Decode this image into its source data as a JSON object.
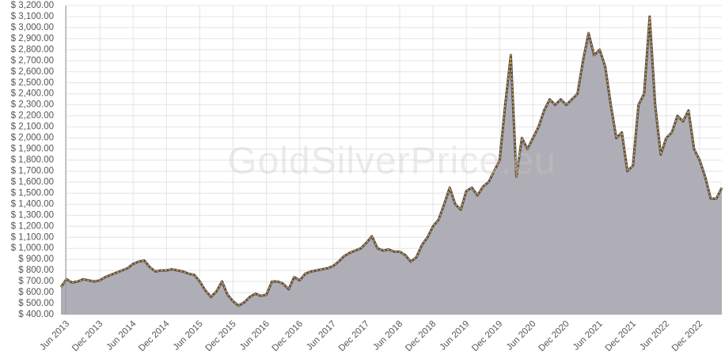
{
  "chart_data": {
    "type": "area",
    "watermark": "GoldSilverPrice.eu",
    "x": [
      "2013-05",
      "2013-06",
      "2013-07",
      "2013-08",
      "2013-09",
      "2013-10",
      "2013-11",
      "2013-12",
      "2014-01",
      "2014-02",
      "2014-03",
      "2014-04",
      "2014-05",
      "2014-06",
      "2014-07",
      "2014-08",
      "2014-09",
      "2014-10",
      "2014-11",
      "2014-12",
      "2015-01",
      "2015-02",
      "2015-03",
      "2015-04",
      "2015-05",
      "2015-06",
      "2015-07",
      "2015-08",
      "2015-09",
      "2015-10",
      "2015-11",
      "2015-12",
      "2016-01",
      "2016-02",
      "2016-03",
      "2016-04",
      "2016-05",
      "2016-06",
      "2016-07",
      "2016-08",
      "2016-09",
      "2016-10",
      "2016-11",
      "2016-12",
      "2017-01",
      "2017-02",
      "2017-03",
      "2017-04",
      "2017-05",
      "2017-06",
      "2017-07",
      "2017-08",
      "2017-09",
      "2017-10",
      "2017-11",
      "2017-12",
      "2018-01",
      "2018-02",
      "2018-03",
      "2018-04",
      "2018-05",
      "2018-06",
      "2018-07",
      "2018-08",
      "2018-09",
      "2018-10",
      "2018-11",
      "2018-12",
      "2019-01",
      "2019-02",
      "2019-03",
      "2019-04",
      "2019-05",
      "2019-06",
      "2019-07",
      "2019-08",
      "2019-09",
      "2019-10",
      "2019-11",
      "2019-12",
      "2020-01",
      "2020-02",
      "2020-03",
      "2020-04",
      "2020-05",
      "2020-06",
      "2020-07",
      "2020-08",
      "2020-09",
      "2020-10",
      "2020-11",
      "2020-12",
      "2021-01",
      "2021-02",
      "2021-03",
      "2021-04",
      "2021-05",
      "2021-06",
      "2021-07",
      "2021-08",
      "2021-09",
      "2021-10",
      "2021-11",
      "2021-12",
      "2022-01",
      "2022-02",
      "2022-03",
      "2022-04",
      "2022-05",
      "2022-06",
      "2022-07",
      "2022-08",
      "2022-09",
      "2022-10",
      "2022-11",
      "2022-12",
      "2023-01",
      "2023-02",
      "2023-03",
      "2023-04"
    ],
    "values": [
      650,
      720,
      690,
      700,
      720,
      710,
      700,
      710,
      740,
      760,
      780,
      800,
      820,
      860,
      880,
      890,
      830,
      790,
      800,
      800,
      810,
      800,
      790,
      770,
      760,
      700,
      620,
      560,
      610,
      700,
      580,
      520,
      480,
      510,
      560,
      590,
      570,
      580,
      700,
      700,
      680,
      630,
      740,
      710,
      770,
      790,
      800,
      810,
      820,
      840,
      880,
      930,
      960,
      980,
      1000,
      1050,
      1110,
      1000,
      980,
      990,
      970,
      970,
      940,
      880,
      920,
      1030,
      1100,
      1200,
      1260,
      1400,
      1550,
      1400,
      1350,
      1520,
      1550,
      1480,
      1560,
      1600,
      1700,
      1800,
      2300,
      2750,
      1650,
      2000,
      1900,
      2000,
      2100,
      2250,
      2350,
      2300,
      2350,
      2300,
      2350,
      2400,
      2700,
      2950,
      2750,
      2800,
      2650,
      2300,
      2000,
      2050,
      1700,
      1750,
      2300,
      2400,
      3100,
      2300,
      1850,
      2000,
      2050,
      2200,
      2150,
      2250,
      1900,
      1800,
      1650,
      1450,
      1450,
      1550
    ],
    "color": "#e0a52a",
    "fill": "#afaeb6",
    "xlim": [
      "2013-05",
      "2023-04"
    ],
    "xticks": [
      {
        "value": "2013-06",
        "label": "Jun 2013"
      },
      {
        "value": "2013-12",
        "label": "Dec 2013"
      },
      {
        "value": "2014-06",
        "label": "Jun 2014"
      },
      {
        "value": "2014-12",
        "label": "Dec 2014"
      },
      {
        "value": "2015-06",
        "label": "Jun 2015"
      },
      {
        "value": "2015-12",
        "label": "Dec 2015"
      },
      {
        "value": "2016-06",
        "label": "Jun 2016"
      },
      {
        "value": "2016-12",
        "label": "Dec 2016"
      },
      {
        "value": "2017-06",
        "label": "Jun 2017"
      },
      {
        "value": "2017-12",
        "label": "Dec 2017"
      },
      {
        "value": "2018-06",
        "label": "Jun 2018"
      },
      {
        "value": "2018-12",
        "label": "Dec 2018"
      },
      {
        "value": "2019-06",
        "label": "Jun 2019"
      },
      {
        "value": "2019-12",
        "label": "Dec 2019"
      },
      {
        "value": "2020-06",
        "label": "Jun 2020"
      },
      {
        "value": "2020-12",
        "label": "Dec 2020"
      },
      {
        "value": "2021-06",
        "label": "Jun 2021"
      },
      {
        "value": "2021-12",
        "label": "Dec 2021"
      },
      {
        "value": "2022-06",
        "label": "Jun 2022"
      },
      {
        "value": "2022-12",
        "label": "Dec 2022"
      }
    ],
    "ylim": [
      400,
      3200
    ],
    "yticks": [
      {
        "value": 400,
        "label": "$ 400.00"
      },
      {
        "value": 500,
        "label": "$ 500.00"
      },
      {
        "value": 600,
        "label": "$ 600.00"
      },
      {
        "value": 700,
        "label": "$ 700.00"
      },
      {
        "value": 800,
        "label": "$ 800.00"
      },
      {
        "value": 900,
        "label": "$ 900.00"
      },
      {
        "value": 1000,
        "label": "$ 1,000.00"
      },
      {
        "value": 1100,
        "label": "$ 1,100.00"
      },
      {
        "value": 1200,
        "label": "$ 1,200.00"
      },
      {
        "value": 1300,
        "label": "$ 1,300.00"
      },
      {
        "value": 1400,
        "label": "$ 1,400.00"
      },
      {
        "value": 1500,
        "label": "$ 1,500.00"
      },
      {
        "value": 1600,
        "label": "$ 1,600.00"
      },
      {
        "value": 1700,
        "label": "$ 1,700.00"
      },
      {
        "value": 1800,
        "label": "$ 1,800.00"
      },
      {
        "value": 1900,
        "label": "$ 1,900.00"
      },
      {
        "value": 2000,
        "label": "$ 2,000.00"
      },
      {
        "value": 2100,
        "label": "$ 2,100.00"
      },
      {
        "value": 2200,
        "label": "$ 2,200.00"
      },
      {
        "value": 2300,
        "label": "$ 2,300.00"
      },
      {
        "value": 2400,
        "label": "$ 2,400.00"
      },
      {
        "value": 2500,
        "label": "$ 2,500.00"
      },
      {
        "value": 2600,
        "label": "$ 2,600.00"
      },
      {
        "value": 2700,
        "label": "$ 2,700.00"
      },
      {
        "value": 2800,
        "label": "$ 2,800.00"
      },
      {
        "value": 2900,
        "label": "$ 2,900.00"
      },
      {
        "value": 3000,
        "label": "$ 3,000.00"
      },
      {
        "value": 3100,
        "label": "$ 3,100.00"
      },
      {
        "value": 3200,
        "label": "$ 3,200.00"
      }
    ],
    "grid": true
  }
}
